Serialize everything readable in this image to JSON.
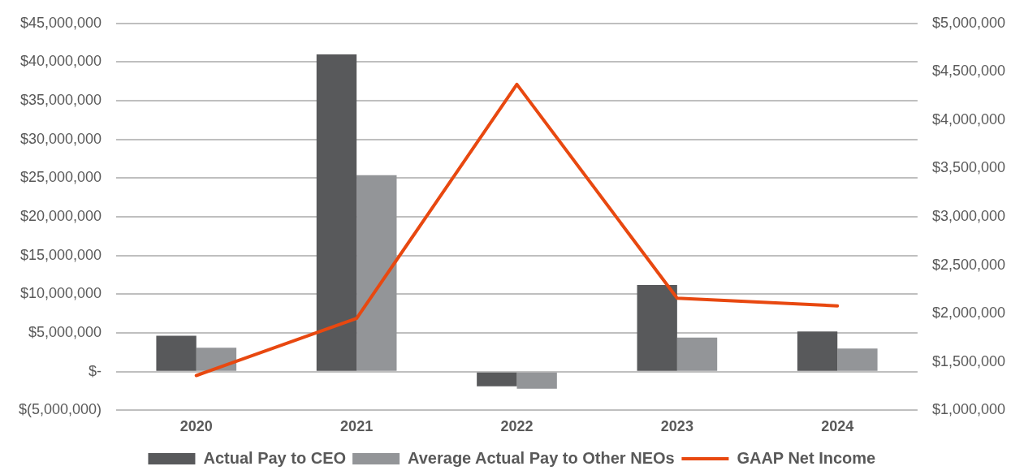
{
  "chart_data": {
    "type": "bar",
    "categories": [
      "2020",
      "2021",
      "2022",
      "2023",
      "2024"
    ],
    "series": [
      {
        "name": "Actual Pay to CEO",
        "color": "#58595b",
        "values": [
          4650000,
          41000000,
          -1900000,
          11200000,
          5200000
        ]
      },
      {
        "name": "Average Actual Pay to Other NEOs",
        "color": "#939598",
        "values": [
          3100000,
          25400000,
          -2200000,
          4400000,
          3000000
        ]
      },
      {
        "name": "GAAP Net Income",
        "type": "line",
        "axis": "y2",
        "color": "#e84810",
        "values": [
          1360000,
          1950000,
          4370000,
          2160000,
          2080000
        ]
      }
    ],
    "ylim": [
      -5000000,
      45000000
    ],
    "yticks": [
      {
        "value": -5000000,
        "label": "$(5,000,000)"
      },
      {
        "value": 0,
        "label": "$-"
      },
      {
        "value": 5000000,
        "label": "$5,000,000"
      },
      {
        "value": 10000000,
        "label": "$10,000,000"
      },
      {
        "value": 15000000,
        "label": "$15,000,000"
      },
      {
        "value": 20000000,
        "label": "$20,000,000"
      },
      {
        "value": 25000000,
        "label": "$25,000,000"
      },
      {
        "value": 30000000,
        "label": "$30,000,000"
      },
      {
        "value": 35000000,
        "label": "$35,000,000"
      },
      {
        "value": 40000000,
        "label": "$40,000,000"
      },
      {
        "value": 45000000,
        "label": "$45,000,000"
      }
    ],
    "y2lim": [
      1000000,
      5000000
    ],
    "y2ticks": [
      {
        "value": 1000000,
        "label": "$1,000,000"
      },
      {
        "value": 1500000,
        "label": "$1,500,000"
      },
      {
        "value": 2000000,
        "label": "$2,000,000"
      },
      {
        "value": 2500000,
        "label": "$2,500,000"
      },
      {
        "value": 3000000,
        "label": "$3,000,000"
      },
      {
        "value": 3500000,
        "label": "$3,500,000"
      },
      {
        "value": 4000000,
        "label": "$4,000,000"
      },
      {
        "value": 4500000,
        "label": "$4,500,000"
      },
      {
        "value": 5000000,
        "label": "$5,000,000"
      }
    ],
    "grid": "y",
    "legend": "bottom",
    "marker": "none",
    "line_style": "solid"
  }
}
